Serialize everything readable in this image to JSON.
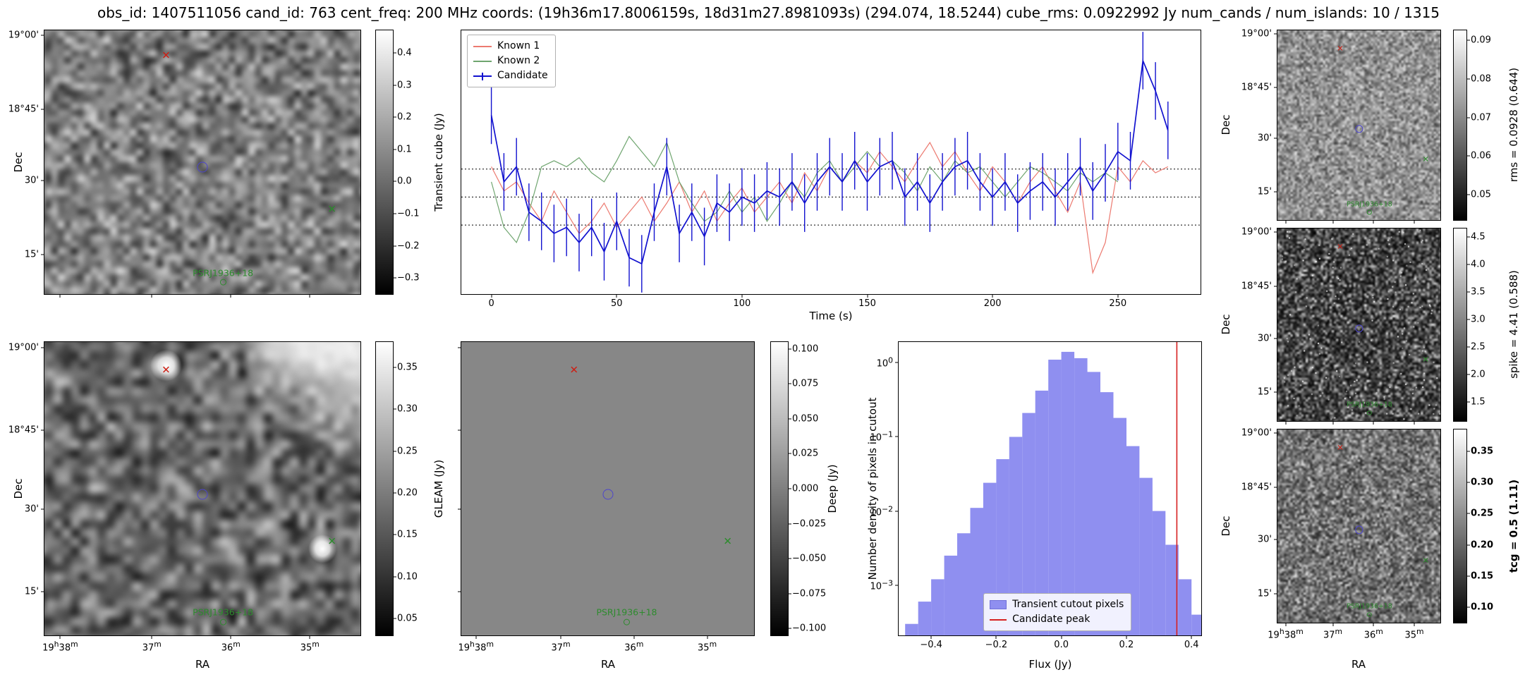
{
  "title": "obs_id: 1407511056 cand_id: 763 cent_freq: 200 MHz coords: (19h36m17.8006159s, 18d31m27.8981093s) (294.074, 18.5244) cube_rms: 0.0922992 Jy num_cands / num_islands: 10 / 1315",
  "axes": {
    "ra_label": "RA",
    "dec_label": "Dec",
    "ra_ticks": [
      "19h38m",
      "37m",
      "36m",
      "35m"
    ],
    "ra_tick_pos": [
      0.05,
      0.34,
      0.59,
      0.84
    ],
    "dec_ticks": [
      "19°00'",
      "18°45'",
      "30'",
      "15'"
    ],
    "dec_tick_pos": [
      0.02,
      0.3,
      0.57,
      0.85
    ]
  },
  "markers": {
    "source_label": "PSRJ1936+18",
    "red_x": {
      "x": 0.385,
      "y": 0.095
    },
    "candidate_circle": {
      "x": 0.5,
      "y": 0.52
    },
    "green_x": {
      "x": 0.91,
      "y": 0.68
    },
    "source_circle": {
      "x": 0.565,
      "y": 0.935
    },
    "colors": {
      "red": "#cc1f14",
      "green": "#2e8b2e",
      "blue": "#4d45cc"
    }
  },
  "image_panels": [
    {
      "id": "p-tl",
      "name": "transient-cube-map",
      "marker_scale": 1,
      "noise": {
        "seed": 11,
        "cell": 9,
        "lo": 40,
        "hi": 215,
        "gamma": 1.0
      },
      "show_dec": true,
      "show_ra": false
    },
    {
      "id": "p-bl",
      "name": "gleam-map",
      "marker_scale": 1,
      "noise": {
        "seed": 22,
        "cell": 12,
        "lo": 25,
        "hi": 200,
        "gamma": 1.15,
        "spots": [
          [
            0.385,
            0.08,
            0.05
          ],
          [
            0.88,
            0.705,
            0.045
          ]
        ],
        "wash": [
          [
            0.97,
            0.02,
            0.35
          ],
          [
            0.8,
            -0.05,
            0.22
          ]
        ]
      },
      "show_dec": true,
      "show_ra": true
    },
    {
      "id": "p-deep",
      "name": "deep-map",
      "marker_scale": 1,
      "noise": {
        "flat": "#878787"
      },
      "show_dec": false,
      "show_ra": true
    },
    {
      "id": "p-rms",
      "name": "rms-map",
      "marker_scale": 0.75,
      "noise": {
        "seed": 33,
        "cell": 3,
        "lo": 60,
        "hi": 230,
        "gamma": 1.0
      },
      "show_dec": true,
      "show_ra": false
    },
    {
      "id": "p-spike",
      "name": "spike-map",
      "marker_scale": 0.75,
      "noise": {
        "seed": 44,
        "cell": 3,
        "lo": 10,
        "hi": 255,
        "gamma": 2.2,
        "speckles": 160
      },
      "show_dec": true,
      "show_ra": false
    },
    {
      "id": "p-tcg",
      "name": "tcg-map",
      "marker_scale": 0.75,
      "noise": {
        "seed": 55,
        "cell": 3,
        "lo": 40,
        "hi": 230,
        "gamma": 1.4
      },
      "show_dec": true,
      "show_ra": true
    }
  ],
  "colorbars": [
    {
      "id": "cb-tl",
      "label": "Transient cube (Jy)",
      "bold": false,
      "vmin": -0.35,
      "vmax": 0.47,
      "tick_vals": [
        0.4,
        0.3,
        0.2,
        0.1,
        0.0,
        -0.1,
        -0.2,
        -0.3
      ],
      "ticks": [
        "0.4",
        "0.3",
        "0.2",
        "0.1",
        "0.0",
        "−0.1",
        "−0.2",
        "−0.3"
      ]
    },
    {
      "id": "cb-bl",
      "label": "GLEAM (Jy)",
      "bold": false,
      "vmin": 0.03,
      "vmax": 0.38,
      "tick_vals": [
        0.35,
        0.3,
        0.25,
        0.2,
        0.15,
        0.1,
        0.05
      ],
      "ticks": [
        "0.35",
        "0.30",
        "0.25",
        "0.20",
        "0.15",
        "0.10",
        "0.05"
      ]
    },
    {
      "id": "cb-deep",
      "label": "Deep (Jy)",
      "bold": false,
      "vmin": -0.105,
      "vmax": 0.105,
      "tick_vals": [
        0.1,
        0.075,
        0.05,
        0.025,
        0.0,
        -0.025,
        -0.05,
        -0.075,
        -0.1
      ],
      "ticks": [
        "0.100",
        "0.075",
        "0.050",
        "0.025",
        "0.000",
        "−0.025",
        "−0.050",
        "−0.075",
        "−0.100"
      ]
    },
    {
      "id": "cb-rms",
      "label": "rms = 0.0928 (0.644)",
      "bold": false,
      "vmin": 0.0435,
      "vmax": 0.0925,
      "tick_vals": [
        0.09,
        0.08,
        0.07,
        0.06,
        0.05
      ],
      "ticks": [
        "0.09",
        "0.08",
        "0.07",
        "0.06",
        "0.05"
      ]
    },
    {
      "id": "cb-spike",
      "label": "spike = 4.41 (0.588)",
      "bold": false,
      "vmin": 1.15,
      "vmax": 4.65,
      "tick_vals": [
        4.5,
        4.0,
        3.5,
        3.0,
        2.5,
        2.0,
        1.5
      ],
      "ticks": [
        "4.5",
        "4.0",
        "3.5",
        "3.0",
        "2.5",
        "2.0",
        "1.5"
      ]
    },
    {
      "id": "cb-tcg",
      "label": "tcg = 0.5 (1.11)",
      "bold": true,
      "vmin": 0.075,
      "vmax": 0.385,
      "tick_vals": [
        0.35,
        0.3,
        0.25,
        0.2,
        0.15,
        0.1
      ],
      "ticks": [
        "0.35",
        "0.30",
        "0.25",
        "0.20",
        "0.15",
        "0.10"
      ]
    }
  ],
  "chart_data": [
    {
      "type": "line",
      "name": "light-curve",
      "xlabel": "Time (s)",
      "ylabel": "",
      "xlim": [
        -12,
        283
      ],
      "ylim": [
        -0.32,
        0.55
      ],
      "x_ticks": [
        0,
        50,
        100,
        150,
        200,
        250
      ],
      "x_tick_labels": [
        "0",
        "50",
        "100",
        "150",
        "200",
        "250"
      ],
      "x_step": 5,
      "threshold_lines": [
        0.0922992,
        0.0,
        -0.0922992
      ],
      "legend_position": "upper-left",
      "series": [
        {
          "name": "Known 1",
          "color": "#ec7a70",
          "x_start": 0,
          "values": [
            0.1,
            0.02,
            0.05,
            -0.02,
            -0.08,
            0.02,
            -0.05,
            -0.12,
            -0.08,
            -0.02,
            -0.1,
            -0.05,
            0.0,
            -0.08,
            -0.02,
            0.05,
            -0.05,
            0.02,
            -0.08,
            -0.02,
            0.03,
            -0.05,
            0.0,
            0.05,
            -0.02,
            0.08,
            0.02,
            0.1,
            0.05,
            0.12,
            0.08,
            0.15,
            0.1,
            0.05,
            0.12,
            0.18,
            0.1,
            0.15,
            0.08,
            0.02,
            0.1,
            0.05,
            -0.02,
            0.05,
            0.1,
            0.02,
            -0.05,
            0.05,
            -0.25,
            -0.15,
            0.1,
            0.05,
            0.12,
            0.08,
            0.1
          ]
        },
        {
          "name": "Known 2",
          "color": "#6fa56f",
          "x_start": 0,
          "values": [
            0.05,
            -0.1,
            -0.15,
            -0.05,
            0.1,
            0.12,
            0.1,
            0.13,
            0.08,
            0.05,
            0.12,
            0.2,
            0.15,
            0.1,
            0.18,
            0.05,
            -0.02,
            -0.08,
            -0.05,
            0.02,
            -0.05,
            0.0,
            -0.08,
            -0.02,
            0.05,
            0.0,
            0.08,
            0.12,
            0.05,
            0.1,
            0.15,
            0.1,
            0.12,
            0.08,
            0.02,
            0.1,
            0.05,
            0.12,
            0.08,
            0.1,
            0.05,
            0.0,
            0.05,
            0.1,
            0.08,
            0.05,
            0.02,
            0.08,
            0.05,
            0.08,
            0.05
          ]
        },
        {
          "name": "Candidate",
          "color": "#1212cf",
          "x_start": 0,
          "yerr": 0.095,
          "values": [
            0.27,
            0.05,
            0.1,
            -0.05,
            -0.08,
            -0.12,
            -0.1,
            -0.15,
            -0.1,
            -0.18,
            -0.08,
            -0.2,
            -0.22,
            -0.05,
            0.1,
            -0.12,
            -0.05,
            -0.13,
            -0.02,
            -0.05,
            0.0,
            -0.02,
            0.02,
            0.0,
            0.05,
            -0.02,
            0.05,
            0.1,
            0.05,
            0.12,
            0.05,
            0.1,
            0.12,
            0.0,
            0.05,
            -0.02,
            0.05,
            0.1,
            0.12,
            0.05,
            0.0,
            0.05,
            -0.02,
            0.02,
            0.05,
            0.0,
            0.05,
            0.1,
            0.02,
            0.08,
            0.15,
            0.12,
            0.45,
            0.35,
            0.22
          ]
        }
      ]
    },
    {
      "type": "bar",
      "name": "flux-histogram",
      "xlabel": "Flux (Jy)",
      "ylabel": "Number density of pixels in cutout",
      "xlim": [
        -0.5,
        0.43
      ],
      "ylog": true,
      "ylim": [
        0.00021,
        1.9
      ],
      "x_ticks": [
        -0.4,
        -0.2,
        0.0,
        0.2,
        0.4
      ],
      "x_tick_labels": [
        "−0.4",
        "−0.2",
        "0.0",
        "0.2",
        "0.4"
      ],
      "y_tick_exponents": [
        0,
        -1,
        -2,
        -3
      ],
      "bin_width": 0.04,
      "bin_centers": [
        -0.46,
        -0.42,
        -0.38,
        -0.34,
        -0.3,
        -0.26,
        -0.22,
        -0.18,
        -0.14,
        -0.1,
        -0.06,
        -0.02,
        0.02,
        0.06,
        0.1,
        0.14,
        0.18,
        0.22,
        0.26,
        0.3,
        0.34,
        0.38,
        0.42
      ],
      "densities": [
        0.0003,
        0.0006,
        0.0012,
        0.0025,
        0.005,
        0.011,
        0.024,
        0.05,
        0.1,
        0.21,
        0.42,
        1.1,
        1.4,
        1.15,
        0.75,
        0.4,
        0.18,
        0.075,
        0.028,
        0.01,
        0.0035,
        0.0012,
        0.0004
      ],
      "candidate_peak": 0.355,
      "bar_color": "#8f8ff0",
      "line_color": "#d62020",
      "legend": [
        "Transient cutout pixels",
        "Candidate peak"
      ],
      "legend_position": "lower-center"
    }
  ]
}
